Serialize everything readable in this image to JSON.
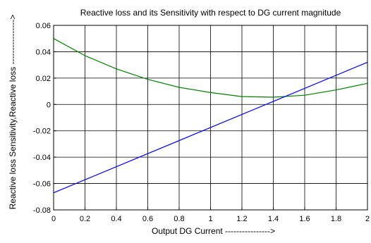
{
  "chart_data": {
    "type": "line",
    "title": "Reactive loss and its Sensitivity with respect to DG current magnitude",
    "xlabel": "Output DG Current ---------------->",
    "ylabel": "Reactive loss Sensitivity,Reactive loss ---------------->",
    "xlim": [
      0,
      2
    ],
    "ylim": [
      -0.08,
      0.06
    ],
    "xticks": [
      "0",
      "0.2",
      "0.4",
      "0.6",
      "0.8",
      "1",
      "1.2",
      "1.4",
      "1.6",
      "1.8",
      "2"
    ],
    "yticks": [
      "0.06",
      "0.04",
      "0.02",
      "0",
      "-0.02",
      "-0.04",
      "-0.06",
      "-0.08"
    ],
    "grid": true,
    "series": [
      {
        "color": "#008000",
        "x": [
          0,
          0.2,
          0.4,
          0.6,
          0.8,
          1.0,
          1.2,
          1.4,
          1.6,
          1.8,
          2.0
        ],
        "y": [
          0.05,
          0.037,
          0.027,
          0.019,
          0.013,
          0.009,
          0.006,
          0.0055,
          0.007,
          0.011,
          0.016
        ]
      },
      {
        "color": "#0000ff",
        "x": [
          0,
          2.0
        ],
        "y": [
          -0.067,
          0.032
        ]
      }
    ]
  }
}
